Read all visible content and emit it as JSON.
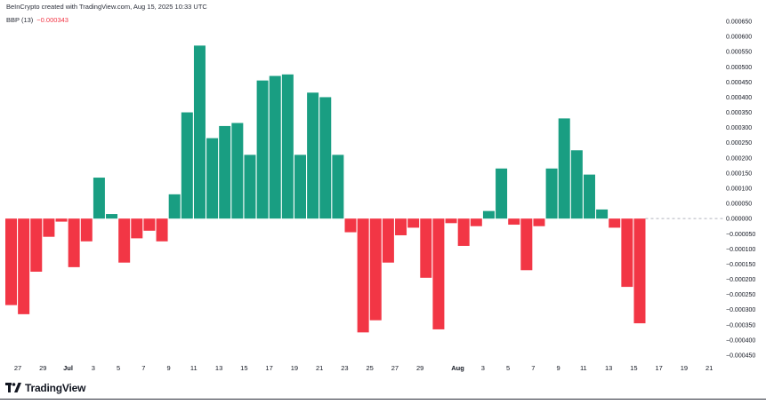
{
  "header": {
    "caption": "BeInCrypto created with TradingView.com, Aug 15, 2025 10:33 UTC"
  },
  "indicator": {
    "name": "BBP (13)",
    "value": "−0.000343"
  },
  "brand": {
    "name": "TradingView"
  },
  "colors": {
    "positive": "#199e82",
    "negative": "#f23645",
    "axis_text": "#131722",
    "zero_line": "#b2b5be"
  },
  "chart_data": {
    "type": "bar",
    "title": "",
    "indicator": "BBP (13)",
    "ylim": [
      -0.00045,
      0.00065
    ],
    "y_ticks": [
      "0.000650",
      "0.000600",
      "0.000550",
      "0.000500",
      "0.000450",
      "0.000400",
      "0.000350",
      "0.000300",
      "0.000250",
      "0.000200",
      "0.000150",
      "0.000100",
      "0.000050",
      "0.000000",
      "−0.000050",
      "−0.000100",
      "−0.000150",
      "−0.000200",
      "−0.000250",
      "−0.000300",
      "−0.000350",
      "−0.000400",
      "−0.000450"
    ],
    "y_tick_values": [
      0.00065,
      0.0006,
      0.00055,
      0.0005,
      0.00045,
      0.0004,
      0.00035,
      0.0003,
      0.00025,
      0.0002,
      0.00015,
      0.0001,
      5e-05,
      0,
      -5e-05,
      -0.0001,
      -0.00015,
      -0.0002,
      -0.00025,
      -0.0003,
      -0.00035,
      -0.0004,
      -0.00045
    ],
    "x_ticks": [
      "27",
      "29",
      "Jul",
      "3",
      "5",
      "7",
      "9",
      "11",
      "13",
      "15",
      "17",
      "19",
      "21",
      "23",
      "25",
      "27",
      "29",
      "Aug",
      "3",
      "5",
      "7",
      "9",
      "11",
      "13",
      "15",
      "17",
      "19",
      "21"
    ],
    "x_tick_days": [
      0,
      2,
      4,
      6,
      8,
      10,
      12,
      14,
      16,
      18,
      20,
      22,
      24,
      26,
      28,
      30,
      32,
      35,
      37,
      39,
      41,
      43,
      45,
      47,
      49,
      51,
      53,
      55
    ],
    "dates": [
      "Jun 26",
      "Jun 27",
      "Jun 28",
      "Jun 29",
      "Jun 30",
      "Jul 1",
      "Jul 2",
      "Jul 3",
      "Jul 4",
      "Jul 5",
      "Jul 6",
      "Jul 7",
      "Jul 8",
      "Jul 9",
      "Jul 10",
      "Jul 11",
      "Jul 12",
      "Jul 13",
      "Jul 14",
      "Jul 15",
      "Jul 16",
      "Jul 17",
      "Jul 18",
      "Jul 19",
      "Jul 20",
      "Jul 21",
      "Jul 22",
      "Jul 23",
      "Jul 24",
      "Jul 25",
      "Jul 26",
      "Jul 27",
      "Jul 28",
      "Jul 29",
      "Jul 30",
      "Jul 31",
      "Aug 1",
      "Aug 2",
      "Aug 3",
      "Aug 4",
      "Aug 5",
      "Aug 6",
      "Aug 7",
      "Aug 8",
      "Aug 9",
      "Aug 10",
      "Aug 11",
      "Aug 12",
      "Aug 13",
      "Aug 14",
      "Aug 15"
    ],
    "values": [
      -0.000285,
      -0.000315,
      -0.000175,
      -6e-05,
      -1e-05,
      -0.00016,
      -7.5e-05,
      0.000135,
      1.5e-05,
      -0.000145,
      -6.5e-05,
      -4e-05,
      -7.5e-05,
      8e-05,
      0.00035,
      0.00057,
      0.000265,
      0.000305,
      0.000315,
      0.00021,
      0.000455,
      0.00047,
      0.000475,
      0.00021,
      0.000415,
      0.0004,
      0.00021,
      -4.5e-05,
      -0.000375,
      -0.000335,
      -0.000145,
      -5.5e-05,
      -3e-05,
      -0.000195,
      -0.000365,
      -1.5e-05,
      -9e-05,
      -2.5e-05,
      2.5e-05,
      0.000165,
      -2e-05,
      -0.00017,
      -2.5e-05,
      0.000165,
      0.00033,
      0.000225,
      0.000145,
      3e-05,
      -3e-05,
      -0.000225,
      -0.000345
    ],
    "grid": false
  }
}
